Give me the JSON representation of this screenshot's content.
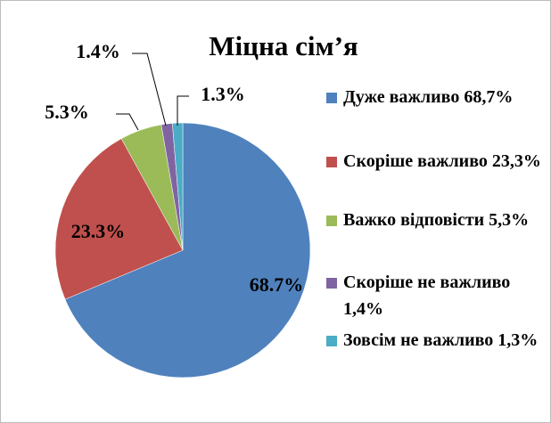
{
  "chart_data": {
    "type": "pie",
    "title": "Міцна сім’я",
    "categories": [
      "Дуже важливо 68,7%",
      "Скоріше важливо 23,3%",
      "Важко відповісти 5,3%",
      "Скоріше не важливо 1,4%",
      "Зовсім не важливо 1,3%"
    ],
    "values": [
      68.7,
      23.3,
      5.3,
      1.4,
      1.3
    ],
    "value_labels": [
      "68.7%",
      "23.3%",
      "5.3%",
      "1.4%",
      "1.3%"
    ],
    "colors": [
      "#4f81bd",
      "#c0504d",
      "#9bbb59",
      "#8064a2",
      "#4bacc6"
    ],
    "legend": "right"
  }
}
